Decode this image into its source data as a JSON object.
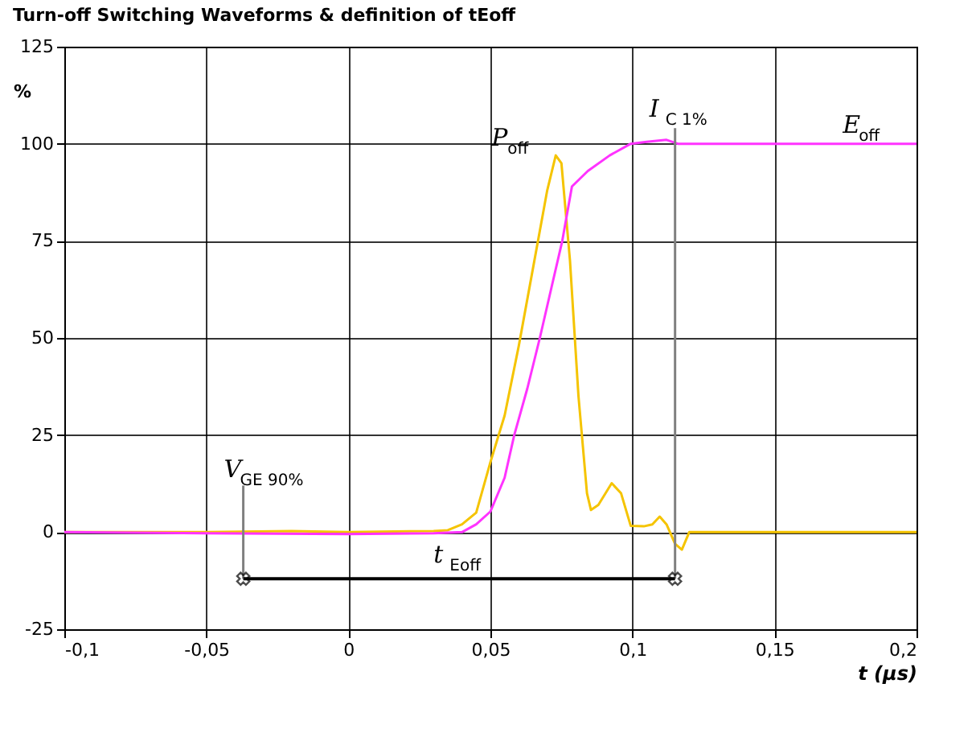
{
  "chart_data": {
    "type": "line",
    "title": "Turn-off Switching Waveforms & definition of tEoff",
    "xlabel": "t (µs)",
    "ylabel": "%",
    "xlim": [
      -0.1,
      0.2
    ],
    "ylim": [
      -25,
      125
    ],
    "xticks": [
      {
        "value": -0.1,
        "label": "-0,1"
      },
      {
        "value": -0.05,
        "label": "-0,05"
      },
      {
        "value": 0,
        "label": "0"
      },
      {
        "value": 0.05,
        "label": "0,05"
      },
      {
        "value": 0.1,
        "label": "0,1"
      },
      {
        "value": 0.15,
        "label": "0,15"
      },
      {
        "value": 0.2,
        "label": "0,2"
      }
    ],
    "yticks": [
      -25,
      0,
      25,
      50,
      75,
      100,
      125
    ],
    "grid": true,
    "line_style": "solid",
    "series": [
      {
        "color": "#f5c400",
        "x": [
          -0.1,
          -0.05,
          -0.02,
          0,
          0.03,
          0.035,
          0.04,
          0.045,
          0.05,
          0.055,
          0.06,
          0.065,
          0.07,
          0.073,
          0.075,
          0.078,
          0.081,
          0.084,
          0.0854,
          0.088,
          0.0927,
          0.096,
          0.0994,
          0.104,
          0.107,
          0.1096,
          0.112,
          0.115,
          0.1174,
          0.12,
          0.2
        ],
        "values": [
          0,
          0,
          0.3,
          0,
          0.3,
          0.5,
          2,
          5,
          18,
          30,
          48,
          68,
          88,
          97,
          95,
          70,
          35,
          10,
          5.7,
          7,
          12.6,
          10,
          1.6,
          1.5,
          2,
          4,
          2,
          -3,
          -4.5,
          0,
          0
        ]
      },
      {
        "color": "#ff33ff",
        "x": [
          -0.1,
          -0.05,
          0,
          0.03,
          0.04,
          0.045,
          0.05,
          0.055,
          0.0584,
          0.063,
          0.0674,
          0.0715,
          0.0753,
          0.0787,
          0.0843,
          0.092,
          0.0994,
          0.105,
          0.112,
          0.116,
          0.2
        ],
        "values": [
          0,
          -0.3,
          -0.5,
          -0.3,
          0,
          2,
          5.3,
          14,
          25,
          37,
          50,
          63,
          75,
          89,
          93,
          97,
          100,
          100.5,
          101,
          100,
          100
        ]
      },
      {
        "color": "#808080",
        "x": [
          -0.037,
          -0.037
        ],
        "values": [
          12,
          -12
        ]
      },
      {
        "color": "#808080",
        "x": [
          0.115,
          0.115
        ],
        "values": [
          104,
          -12
        ]
      },
      {
        "color": "#000000",
        "x": [
          -0.037,
          0.115
        ],
        "values": [
          -12,
          -12
        ],
        "marker": "cross"
      }
    ],
    "annotations": [
      {
        "text": "P$_{off}$",
        "x": 0.073,
        "y": 97
      },
      {
        "text": "I$_{C 1%}$",
        "x": 0.115,
        "y": 104
      },
      {
        "text": "E$_{off}$",
        "x": 0.174,
        "y": 100
      },
      {
        "text": "V$_{GE 90%}$",
        "x": -0.037,
        "y": 12
      },
      {
        "text": "t$_{Eoff}$",
        "x": 0.03,
        "y": -12
      }
    ]
  }
}
